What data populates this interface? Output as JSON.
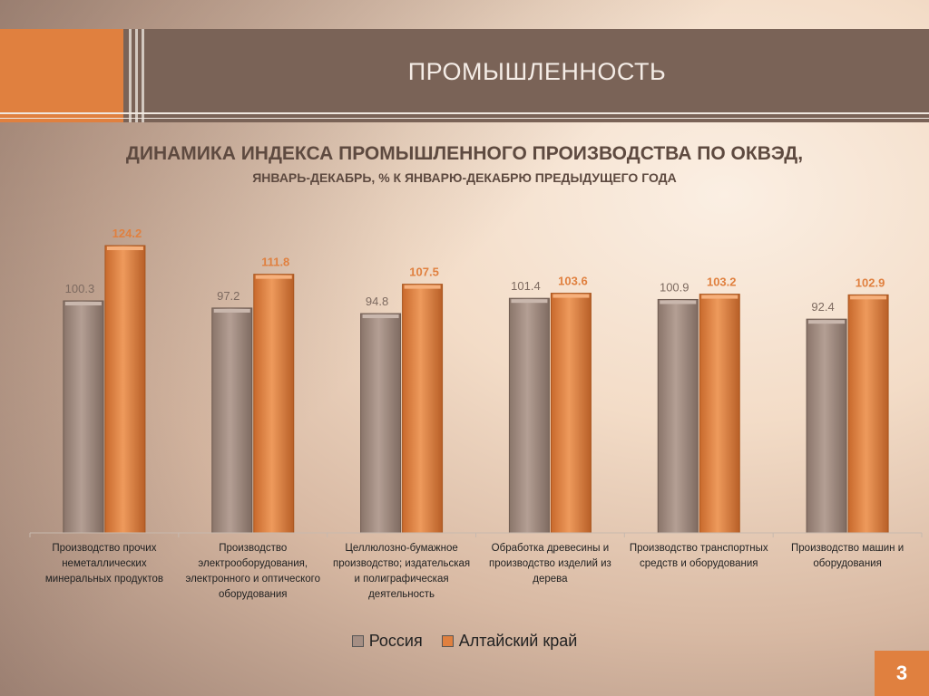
{
  "header": {
    "title": "ПРОМЫШЛЕННОСТЬ"
  },
  "page_number": "3",
  "colors": {
    "russia": "#a58f84",
    "altai": "#e0803f",
    "header": "#7a6357",
    "accent": "#e0803f"
  },
  "chart_data": {
    "type": "bar",
    "title": "ДИНАМИКА ИНДЕКСА ПРОМЫШЛЕННОГО ПРОИЗВОДСТВА ПО ОКВЭД,",
    "subtitle": "ЯНВАРЬ-ДЕКАБРЬ, % К ЯНВАРЮ-ДЕКАБРЮ ПРЕДЫДУЩЕГО ГОДА",
    "categories": [
      "Производство прочих неметаллических минеральных продуктов",
      "Производство электрооборудования, электронного и оптического оборудования",
      "Целлюлозно-бумажное производство; издательская и полиграфическая деятельность",
      "Обработка древесины и производство изделий из дерева",
      "Производство транспортных средств и оборудования",
      "Производство машин и оборудования"
    ],
    "series": [
      {
        "name": "Россия",
        "values": [
          100.3,
          97.2,
          94.8,
          101.4,
          100.9,
          92.4
        ]
      },
      {
        "name": "Алтайский край",
        "values": [
          124.2,
          111.8,
          107.5,
          103.6,
          103.2,
          102.9
        ]
      }
    ],
    "ylim": [
      0,
      124.2
    ],
    "grid": false,
    "legend_position": "bottom"
  }
}
